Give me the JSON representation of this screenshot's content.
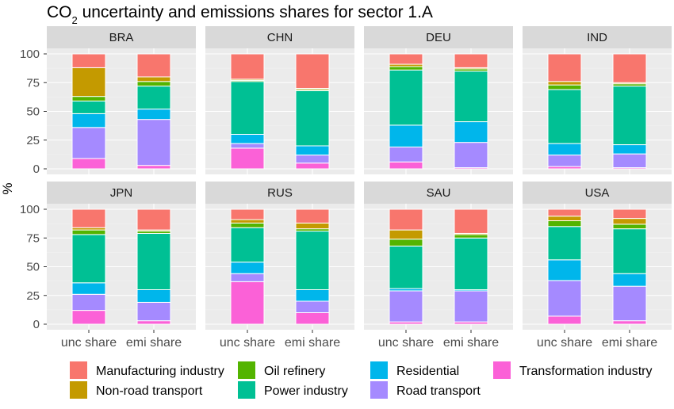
{
  "chart_data": {
    "type": "bar",
    "stacked": true,
    "title_prefix": "CO",
    "title_subscript": "2",
    "title_suffix": " uncertainty and emissions shares for sector 1.A",
    "ylabel": "%",
    "xlabel": "",
    "ylim": [
      0,
      100
    ],
    "yticks": [
      0,
      25,
      50,
      75,
      100
    ],
    "categories": [
      "unc share",
      "emi share"
    ],
    "grid": true,
    "legend_position": "bottom",
    "series_order": [
      "Transformation industry",
      "Road transport",
      "Residential",
      "Power industry",
      "Oil refinery",
      "Non-road transport",
      "Manufacturing industry"
    ],
    "legend_order": [
      "Manufacturing industry",
      "Oil refinery",
      "Residential",
      "Transformation industry",
      "Non-road transport",
      "Power industry",
      "Road transport"
    ],
    "colors": {
      "Manufacturing industry": "#F8766D",
      "Non-road transport": "#C49A00",
      "Oil refinery": "#53B400",
      "Power industry": "#00C094",
      "Residential": "#00B6EB",
      "Road transport": "#A58AFF",
      "Transformation industry": "#FB61D7"
    },
    "panels": [
      {
        "country": "BRA",
        "values": {
          "unc share": {
            "Transformation industry": 9,
            "Road transport": 27,
            "Residential": 12,
            "Power industry": 11,
            "Oil refinery": 4,
            "Non-road transport": 25,
            "Manufacturing industry": 12
          },
          "emi share": {
            "Transformation industry": 3,
            "Road transport": 40,
            "Residential": 9,
            "Power industry": 20,
            "Oil refinery": 4,
            "Non-road transport": 4,
            "Manufacturing industry": 20
          }
        }
      },
      {
        "country": "CHN",
        "values": {
          "unc share": {
            "Transformation industry": 18,
            "Road transport": 4,
            "Residential": 8,
            "Power industry": 46,
            "Oil refinery": 1,
            "Non-road transport": 1,
            "Manufacturing industry": 22
          },
          "emi share": {
            "Transformation industry": 5,
            "Road transport": 7,
            "Residential": 8,
            "Power industry": 48,
            "Oil refinery": 1,
            "Non-road transport": 1,
            "Manufacturing industry": 30
          }
        }
      },
      {
        "country": "DEU",
        "values": {
          "unc share": {
            "Transformation industry": 6,
            "Road transport": 13,
            "Residential": 19,
            "Power industry": 48,
            "Oil refinery": 3,
            "Non-road transport": 2,
            "Manufacturing industry": 9
          },
          "emi share": {
            "Transformation industry": 1,
            "Road transport": 22,
            "Residential": 18,
            "Power industry": 44,
            "Oil refinery": 2,
            "Non-road transport": 1,
            "Manufacturing industry": 12
          }
        }
      },
      {
        "country": "IND",
        "values": {
          "unc share": {
            "Transformation industry": 2,
            "Road transport": 10,
            "Residential": 10,
            "Power industry": 47,
            "Oil refinery": 4,
            "Non-road transport": 3,
            "Manufacturing industry": 24
          },
          "emi share": {
            "Transformation industry": 1,
            "Road transport": 12,
            "Residential": 8,
            "Power industry": 51,
            "Oil refinery": 2,
            "Non-road transport": 1,
            "Manufacturing industry": 25
          }
        }
      },
      {
        "country": "JPN",
        "values": {
          "unc share": {
            "Transformation industry": 12,
            "Road transport": 14,
            "Residential": 10,
            "Power industry": 42,
            "Oil refinery": 4,
            "Non-road transport": 2,
            "Manufacturing industry": 16
          },
          "emi share": {
            "Transformation industry": 3,
            "Road transport": 16,
            "Residential": 11,
            "Power industry": 49,
            "Oil refinery": 2,
            "Non-road transport": 1,
            "Manufacturing industry": 18
          }
        }
      },
      {
        "country": "RUS",
        "values": {
          "unc share": {
            "Transformation industry": 37,
            "Road transport": 7,
            "Residential": 10,
            "Power industry": 30,
            "Oil refinery": 4,
            "Non-road transport": 3,
            "Manufacturing industry": 9
          },
          "emi share": {
            "Transformation industry": 10,
            "Road transport": 10,
            "Residential": 10,
            "Power industry": 51,
            "Oil refinery": 2,
            "Non-road transport": 5,
            "Manufacturing industry": 12
          }
        }
      },
      {
        "country": "SAU",
        "values": {
          "unc share": {
            "Transformation industry": 2,
            "Road transport": 27,
            "Residential": 2,
            "Power industry": 37,
            "Oil refinery": 6,
            "Non-road transport": 8,
            "Manufacturing industry": 18
          },
          "emi share": {
            "Transformation industry": 2,
            "Road transport": 27,
            "Residential": 1,
            "Power industry": 45,
            "Oil refinery": 3,
            "Non-road transport": 1,
            "Manufacturing industry": 21
          }
        }
      },
      {
        "country": "USA",
        "values": {
          "unc share": {
            "Transformation industry": 7,
            "Road transport": 31,
            "Residential": 18,
            "Power industry": 29,
            "Oil refinery": 5,
            "Non-road transport": 4,
            "Manufacturing industry": 6
          },
          "emi share": {
            "Transformation industry": 3,
            "Road transport": 30,
            "Residential": 11,
            "Power industry": 39,
            "Oil refinery": 4,
            "Non-road transport": 5,
            "Manufacturing industry": 8
          }
        }
      }
    ]
  }
}
